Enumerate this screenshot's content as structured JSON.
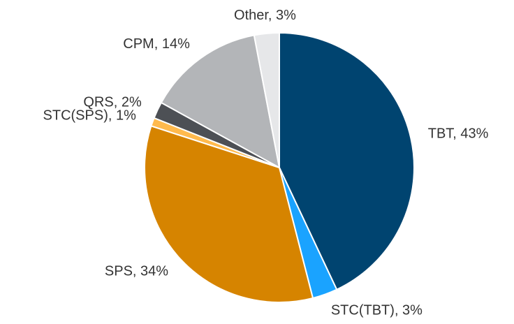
{
  "chart_data": {
    "type": "pie",
    "values": [
      43,
      3,
      34,
      1,
      2,
      14,
      3
    ],
    "value_labels": [
      "TBT, 43%",
      "STC(TBT), 3%",
      "SPS, 34%",
      "STC(SPS), 1%",
      "QRS, 2%",
      "CPM, 14%",
      "Other, 3%"
    ],
    "colors": [
      "#004470",
      "#1aa3ff",
      "#d68400",
      "#ffba4d",
      "#4d5055",
      "#b3b5b8",
      "#e6e7e9"
    ]
  }
}
